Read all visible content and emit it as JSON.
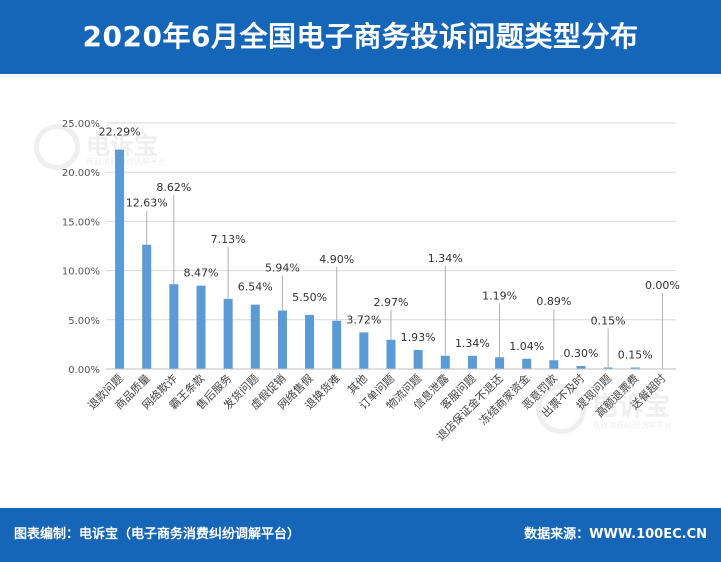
{
  "title": "2020年6月全国电子商务投诉问题类型分布",
  "footer": {
    "left": "图表编制：电诉宝（电子商务消费纠纷调解平台）",
    "right": "数据来源：WWW.100EC.CN"
  },
  "watermark": {
    "brand": "电诉宝",
    "sub": "电商消费纠纷调解平台"
  },
  "colors": {
    "header": "#1565b8",
    "bar": "#5b9bd5",
    "grid": "#d9d9d9"
  },
  "chart_data": {
    "type": "bar",
    "categories": [
      "退款问题",
      "商品质量",
      "网络欺诈",
      "霸王条款",
      "售后服务",
      "发货问题",
      "虚假促销",
      "网络售假",
      "退换货难",
      "其他",
      "订单问题",
      "物流问题",
      "信息泄露",
      "客服问题",
      "退店保证金不退还",
      "冻结商家资金",
      "恶意罚款",
      "出票不及时",
      "提现问题",
      "高额退票费",
      "送餐超时"
    ],
    "values": [
      22.29,
      12.63,
      8.62,
      8.47,
      7.13,
      6.54,
      5.94,
      5.5,
      4.9,
      3.72,
      2.97,
      1.93,
      1.34,
      1.34,
      1.19,
      1.04,
      0.89,
      0.3,
      0.15,
      0.15,
      0.0
    ],
    "data_labels": [
      "22.29%",
      "12.63%",
      "8.62%",
      "8.47%",
      "7.13%",
      "6.54%",
      "5.94%",
      "5.50%",
      "4.90%",
      "3.72%",
      "2.97%",
      "1.93%",
      "1.34%",
      "1.34%",
      "1.19%",
      "1.04%",
      "0.89%",
      "0.30%",
      "0.15%",
      "0.15%",
      "0.00%"
    ],
    "y_ticks": [
      "0.00%",
      "5.00%",
      "10.00%",
      "15.00%",
      "20.00%",
      "25.00%"
    ],
    "ylim": [
      0,
      25
    ],
    "grid": true,
    "legend": "none"
  }
}
